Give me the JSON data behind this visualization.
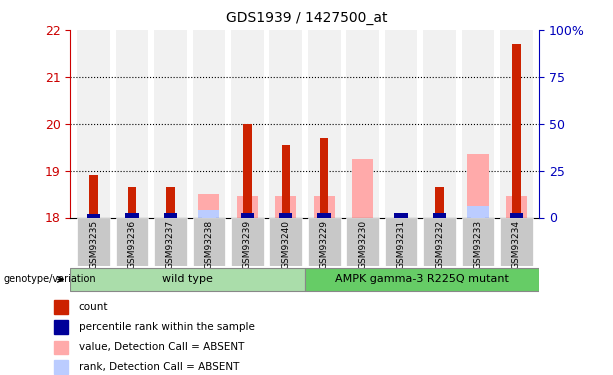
{
  "title": "GDS1939 / 1427500_at",
  "samples": [
    "GSM93235",
    "GSM93236",
    "GSM93237",
    "GSM93238",
    "GSM93239",
    "GSM93240",
    "GSM93229",
    "GSM93230",
    "GSM93231",
    "GSM93232",
    "GSM93233",
    "GSM93234"
  ],
  "wild_type_count": 6,
  "ylim_left": [
    18,
    22
  ],
  "yticks_left": [
    18,
    19,
    20,
    21,
    22
  ],
  "ylim_right": [
    0,
    100
  ],
  "yticks_right": [
    0,
    25,
    50,
    75,
    100
  ],
  "yticklabels_right": [
    "0",
    "25",
    "50",
    "75",
    "100%"
  ],
  "bar_bottom": 18,
  "red_tops": [
    18.9,
    18.65,
    18.65,
    18.0,
    20.0,
    19.55,
    19.7,
    18.0,
    18.05,
    18.65,
    18.0,
    21.7
  ],
  "pink_tops": [
    18.0,
    18.0,
    18.0,
    18.5,
    18.45,
    18.45,
    18.45,
    19.25,
    18.0,
    18.0,
    19.35,
    18.45
  ],
  "blue_pct": [
    8,
    10,
    10,
    0,
    12,
    10,
    10,
    0,
    12,
    10,
    5,
    10
  ],
  "lblue_pct": [
    0,
    0,
    0,
    5,
    0,
    0,
    0,
    0,
    0,
    0,
    8,
    0
  ],
  "col_bg_color": "#c8c8c8",
  "wt_color": "#aaddaa",
  "mutant_color": "#66cc66",
  "red_color": "#cc2200",
  "blue_color": "#000099",
  "pink_color": "#ffaaaa",
  "lblue_color": "#bbccff",
  "left_axis_color": "#cc0000",
  "right_axis_color": "#0000bb",
  "legend_items": [
    "count",
    "percentile rank within the sample",
    "value, Detection Call = ABSENT",
    "rank, Detection Call = ABSENT"
  ]
}
